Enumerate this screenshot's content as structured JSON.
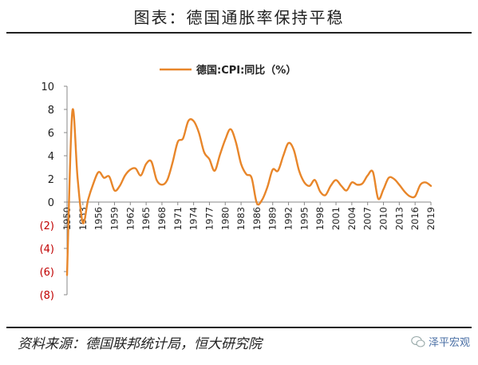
{
  "figure_title": "图表：德国通胀率保持平稳",
  "source": "资料来源：德国联邦统计局，恒大研究院",
  "watermark": "泽平宏观",
  "watermark_icon": "wechat-icon",
  "line_color": "#E8862A",
  "negative_tick_color": "#C00000",
  "chart_data": {
    "type": "line",
    "title": "",
    "xlabel": "",
    "ylabel": "",
    "legend": "top-center",
    "grid": false,
    "ylim": [
      -8,
      10
    ],
    "y_ticks": [
      "10",
      "8",
      "6",
      "4",
      "2",
      "0",
      "(2)",
      "(4)",
      "(6)",
      "(8)"
    ],
    "x_tick_labels": [
      "1950",
      "1953",
      "1956",
      "1959",
      "1962",
      "1965",
      "1968",
      "1971",
      "1974",
      "1977",
      "1980",
      "1983",
      "1986",
      "1989",
      "1992",
      "1995",
      "1998",
      "2001",
      "2004",
      "2007",
      "2010",
      "2013",
      "2016",
      "2019"
    ],
    "series": [
      {
        "name": "德国:CPI:同比（%）",
        "x": [
          1950,
          1951,
          1952,
          1953,
          1954,
          1955,
          1956,
          1957,
          1958,
          1959,
          1960,
          1961,
          1962,
          1963,
          1964,
          1965,
          1966,
          1967,
          1968,
          1969,
          1970,
          1971,
          1972,
          1973,
          1974,
          1975,
          1976,
          1977,
          1978,
          1979,
          1980,
          1981,
          1982,
          1983,
          1984,
          1985,
          1986,
          1987,
          1988,
          1989,
          1990,
          1991,
          1992,
          1993,
          1994,
          1995,
          1996,
          1997,
          1998,
          1999,
          2000,
          2001,
          2002,
          2003,
          2004,
          2005,
          2006,
          2007,
          2008,
          2009,
          2010,
          2011,
          2012,
          2013,
          2014,
          2015,
          2016,
          2017,
          2018,
          2019
        ],
        "values": [
          -6.3,
          7.8,
          2.1,
          -1.8,
          0.2,
          1.6,
          2.6,
          2.1,
          2.2,
          1.0,
          1.4,
          2.3,
          2.8,
          2.9,
          2.3,
          3.3,
          3.5,
          1.9,
          1.5,
          1.9,
          3.4,
          5.2,
          5.5,
          7.0,
          7.0,
          6.0,
          4.3,
          3.7,
          2.7,
          4.1,
          5.4,
          6.3,
          5.2,
          3.3,
          2.4,
          2.1,
          -0.1,
          0.2,
          1.3,
          2.8,
          2.7,
          4.0,
          5.1,
          4.5,
          2.7,
          1.7,
          1.4,
          1.9,
          0.9,
          0.6,
          1.4,
          1.9,
          1.4,
          1.0,
          1.7,
          1.5,
          1.6,
          2.3,
          2.6,
          0.3,
          1.1,
          2.1,
          2.0,
          1.5,
          0.9,
          0.5,
          0.5,
          1.5,
          1.7,
          1.4
        ]
      }
    ]
  }
}
